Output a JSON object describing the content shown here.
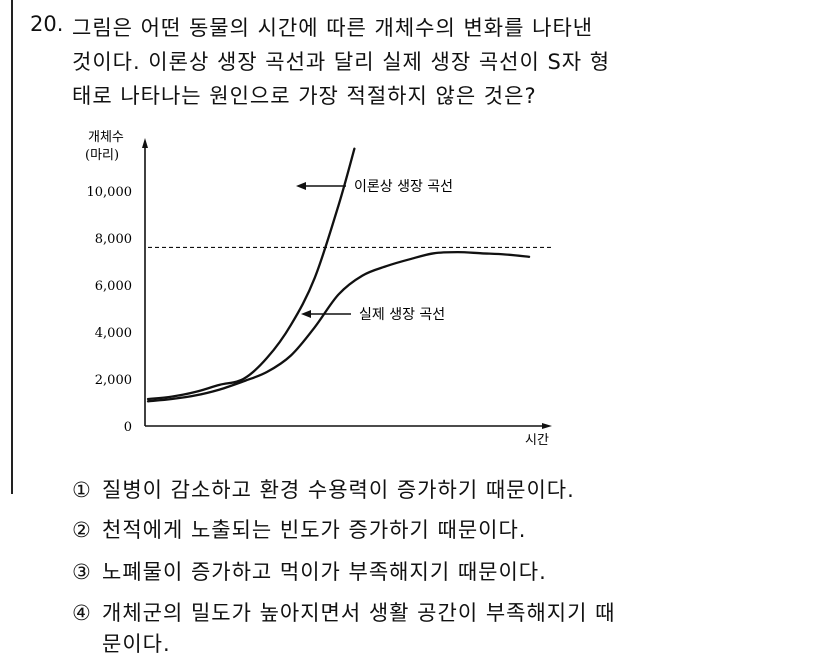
{
  "question": {
    "number": "20.",
    "lines": [
      "그림은 어떤 동물의 시간에 따른 개체수의 변화를 나타낸",
      "것이다. 이론상 생장 곡선과 달리 실제 생장 곡선이 S자 형",
      "태로 나타나는 원인으로 가장 적절하지 않은 것은?"
    ]
  },
  "chart_data": {
    "type": "line",
    "ylabel_line1": "개체수",
    "ylabel_line2": "(마리)",
    "xlabel": "시간",
    "y_ticks": [
      "0",
      "2,000",
      "4,000",
      "6,000",
      "8,000",
      "10,000"
    ],
    "ylim": [
      0,
      12000
    ],
    "xlim": [
      0,
      10
    ],
    "carrying_capacity": 7600,
    "series": [
      {
        "name": "이론상 생장 곡선",
        "x": [
          0,
          0.6,
          1.2,
          1.8,
          2.4,
          3.0,
          3.6,
          4.2,
          4.8,
          5.2
        ],
        "y": [
          1150,
          1250,
          1450,
          1750,
          2000,
          2900,
          4300,
          6300,
          9400,
          11800
        ]
      },
      {
        "name": "실제 생장 곡선",
        "x": [
          0,
          0.6,
          1.2,
          1.8,
          2.4,
          3.0,
          3.6,
          4.2,
          4.8,
          5.4,
          6.0,
          6.6,
          7.2,
          7.8,
          8.4,
          9.0,
          9.6
        ],
        "y": [
          1050,
          1150,
          1300,
          1550,
          1900,
          2300,
          3000,
          4200,
          5600,
          6400,
          6800,
          7100,
          7350,
          7400,
          7350,
          7300,
          7200
        ]
      }
    ],
    "grid": false,
    "legend": "annotated"
  },
  "choices": [
    {
      "mark": "①",
      "text": "질병이 감소하고 환경 수용력이 증가하기 때문이다."
    },
    {
      "mark": "②",
      "text": "천적에게 노출되는 빈도가 증가하기 때문이다."
    },
    {
      "mark": "③",
      "text": "노폐물이 증가하고 먹이가 부족해지기 때문이다."
    },
    {
      "mark": "④",
      "text": "개체군의 밀도가 높아지면서 생활 공간이 부족해지기 때",
      "text_cont": "문이다."
    }
  ]
}
